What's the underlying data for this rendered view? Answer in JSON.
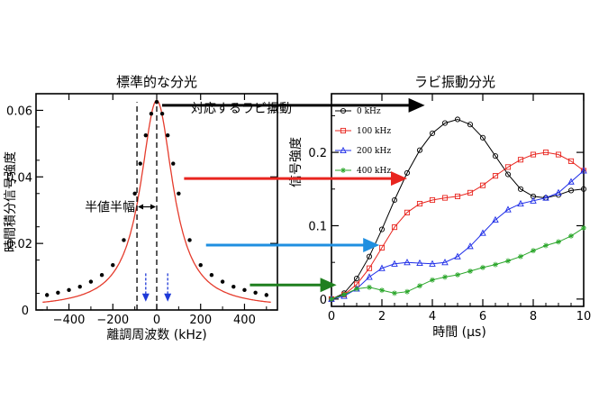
{
  "chart_data": [
    {
      "type": "line",
      "title": "標準的な分光",
      "xlabel": "離調周波数 (kHz)",
      "ylabel": "時間積分信号強度",
      "xlim": [
        -550,
        550
      ],
      "ylim": [
        0,
        0.065
      ],
      "xticks": [
        -400,
        -200,
        0,
        200,
        400
      ],
      "xtick_labels": [
        "−400",
        "−200",
        "0",
        "200",
        "400"
      ],
      "yticks": [
        0,
        0.02,
        0.04,
        0.06
      ],
      "ytick_labels": [
        "0",
        "0.02",
        "0.04",
        "0.06"
      ],
      "series": [
        {
          "x": [
            -500,
            -450,
            -400,
            -350,
            -300,
            -250,
            -200,
            -150,
            -100,
            -75,
            -50,
            -25,
            0,
            25,
            50,
            75,
            100,
            150,
            200,
            250,
            300,
            350,
            400,
            450,
            500
          ],
          "y": [
            0.0045,
            0.0052,
            0.006,
            0.007,
            0.0085,
            0.0105,
            0.0135,
            0.021,
            0.035,
            0.044,
            0.0525,
            0.059,
            0.0625,
            0.059,
            0.0525,
            0.044,
            0.035,
            0.021,
            0.0135,
            0.0105,
            0.0085,
            0.007,
            0.006,
            0.0052,
            0.0045
          ]
        }
      ],
      "annotations": [
        {
          "text": "半値半幅",
          "x_range": [
            -90,
            0
          ],
          "y": 0.031
        },
        {
          "text": "",
          "dashed_vertical_lines_x": [
            -90,
            0
          ]
        },
        {
          "text": "",
          "blue_arrows_x": [
            -50,
            50
          ],
          "y_range": [
            0.011,
            0.0025
          ]
        }
      ]
    },
    {
      "type": "scatter",
      "title": "ラビ振動分光",
      "xlabel": "時間 (μs)",
      "ylabel": "信号強度",
      "xlim": [
        0,
        10
      ],
      "ylim": [
        -0.01,
        0.28
      ],
      "xticks": [
        0,
        2,
        4,
        6,
        8,
        10
      ],
      "yticks": [
        0,
        0.1,
        0.2
      ],
      "ytick_labels": [
        "0",
        "0.1",
        "0.2"
      ],
      "legend_position": "top-left",
      "series": [
        {
          "name": "0 kHz",
          "color": "#000000",
          "marker": "circle",
          "x": [
            0,
            0.5,
            1,
            1.5,
            2,
            2.5,
            3,
            3.5,
            4,
            4.5,
            5,
            5.5,
            6,
            6.5,
            7,
            7.5,
            8,
            8.5,
            9,
            9.5,
            10
          ],
          "y": [
            0.0,
            0.008,
            0.028,
            0.058,
            0.095,
            0.135,
            0.172,
            0.203,
            0.226,
            0.24,
            0.245,
            0.238,
            0.22,
            0.195,
            0.17,
            0.15,
            0.14,
            0.138,
            0.142,
            0.148,
            0.15
          ]
        },
        {
          "name": "100 kHz",
          "color": "#e8251f",
          "marker": "square",
          "x": [
            0,
            0.5,
            1,
            1.5,
            2,
            2.5,
            3,
            3.5,
            4,
            4.5,
            5,
            5.5,
            6,
            6.5,
            7,
            7.5,
            8,
            8.5,
            9,
            9.5,
            10
          ],
          "y": [
            0.0,
            0.006,
            0.02,
            0.042,
            0.07,
            0.098,
            0.118,
            0.13,
            0.135,
            0.138,
            0.14,
            0.145,
            0.155,
            0.168,
            0.18,
            0.19,
            0.197,
            0.2,
            0.197,
            0.188,
            0.175
          ]
        },
        {
          "name": "200 kHz",
          "color": "#1f2ee8",
          "marker": "triangle",
          "x": [
            0,
            0.5,
            1,
            1.5,
            2,
            2.5,
            3,
            3.5,
            4,
            4.5,
            5,
            5.5,
            6,
            6.5,
            7,
            7.5,
            8,
            8.5,
            9,
            9.5,
            10
          ],
          "y": [
            0.0,
            0.004,
            0.014,
            0.03,
            0.042,
            0.048,
            0.05,
            0.049,
            0.048,
            0.05,
            0.058,
            0.072,
            0.09,
            0.108,
            0.122,
            0.13,
            0.134,
            0.138,
            0.145,
            0.16,
            0.175
          ]
        },
        {
          "name": "400 kHz",
          "color": "#2aa62a",
          "marker": "star",
          "x": [
            0,
            0.5,
            1,
            1.5,
            2,
            2.5,
            3,
            3.5,
            4,
            4.5,
            5,
            5.5,
            6,
            6.5,
            7,
            7.5,
            8,
            8.5,
            9,
            9.5,
            10
          ],
          "y": [
            0.0,
            0.006,
            0.014,
            0.016,
            0.012,
            0.008,
            0.01,
            0.018,
            0.026,
            0.03,
            0.033,
            0.038,
            0.043,
            0.047,
            0.052,
            0.058,
            0.066,
            0.073,
            0.078,
            0.086,
            0.097
          ]
        }
      ]
    }
  ],
  "connector": {
    "label": "対応するラビ振動",
    "arrows": [
      {
        "color": "#000000",
        "from_kHz": 0,
        "to_us": 3.7,
        "level": 0.0615
      },
      {
        "color": "#e8251f",
        "from_kHz": 100,
        "to_us": 3.0,
        "level": 0.0395
      },
      {
        "color": "#1f8fe0",
        "from_kHz": 200,
        "to_us": 1.9,
        "level": 0.0195
      },
      {
        "color": "#1f7f1f",
        "from_kHz": 400,
        "to_us": 0.2,
        "level": 0.0075
      }
    ]
  }
}
